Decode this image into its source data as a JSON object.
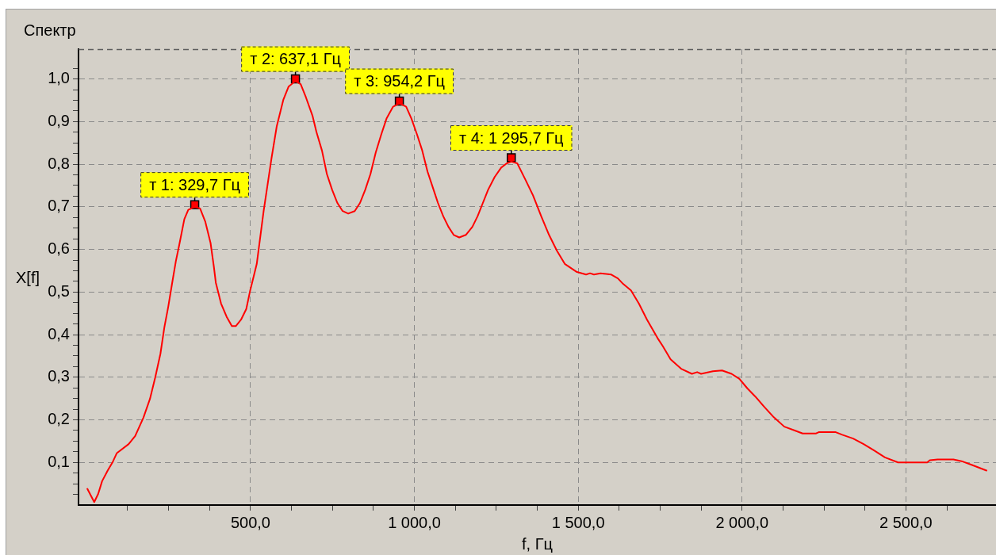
{
  "chart_data": {
    "type": "line",
    "title": "Спектр",
    "xlabel": "f, Гц",
    "ylabel": "X[f]",
    "color": "#ff0000",
    "marker": "none",
    "line_style": "solid",
    "grid": true,
    "xlim": [
      -25,
      2775
    ],
    "ylim": [
      0,
      1.07
    ],
    "xticks": [
      {
        "value": 125,
        "label": null
      },
      {
        "value": 250,
        "label": null
      },
      {
        "value": 375,
        "label": null
      },
      {
        "value": 500,
        "label": "500,0"
      },
      {
        "value": 625,
        "label": null
      },
      {
        "value": 750,
        "label": null
      },
      {
        "value": 875,
        "label": null
      },
      {
        "value": 1000,
        "label": "1 000,0"
      },
      {
        "value": 1125,
        "label": null
      },
      {
        "value": 1250,
        "label": null
      },
      {
        "value": 1375,
        "label": null
      },
      {
        "value": 1500,
        "label": "1 500,0"
      },
      {
        "value": 1625,
        "label": null
      },
      {
        "value": 1750,
        "label": null
      },
      {
        "value": 1875,
        "label": null
      },
      {
        "value": 2000,
        "label": "2 000,0"
      },
      {
        "value": 2125,
        "label": null
      },
      {
        "value": 2250,
        "label": null
      },
      {
        "value": 2375,
        "label": null
      },
      {
        "value": 2500,
        "label": "2 500,0"
      },
      {
        "value": 2625,
        "label": null
      }
    ],
    "yticks": [
      {
        "value": 0.025,
        "label": null
      },
      {
        "value": 0.05,
        "label": null
      },
      {
        "value": 0.075,
        "label": null
      },
      {
        "value": 0.1,
        "label": "0,1"
      },
      {
        "value": 0.125,
        "label": null
      },
      {
        "value": 0.15,
        "label": null
      },
      {
        "value": 0.175,
        "label": null
      },
      {
        "value": 0.2,
        "label": "0,2"
      },
      {
        "value": 0.225,
        "label": null
      },
      {
        "value": 0.25,
        "label": null
      },
      {
        "value": 0.275,
        "label": null
      },
      {
        "value": 0.3,
        "label": "0,3"
      },
      {
        "value": 0.325,
        "label": null
      },
      {
        "value": 0.35,
        "label": null
      },
      {
        "value": 0.375,
        "label": null
      },
      {
        "value": 0.4,
        "label": "0,4"
      },
      {
        "value": 0.425,
        "label": null
      },
      {
        "value": 0.45,
        "label": null
      },
      {
        "value": 0.475,
        "label": null
      },
      {
        "value": 0.5,
        "label": "0,5"
      },
      {
        "value": 0.525,
        "label": null
      },
      {
        "value": 0.55,
        "label": null
      },
      {
        "value": 0.575,
        "label": null
      },
      {
        "value": 0.6,
        "label": "0,6"
      },
      {
        "value": 0.625,
        "label": null
      },
      {
        "value": 0.65,
        "label": null
      },
      {
        "value": 0.675,
        "label": null
      },
      {
        "value": 0.7,
        "label": "0,7"
      },
      {
        "value": 0.725,
        "label": null
      },
      {
        "value": 0.75,
        "label": null
      },
      {
        "value": 0.775,
        "label": null
      },
      {
        "value": 0.8,
        "label": "0,8"
      },
      {
        "value": 0.825,
        "label": null
      },
      {
        "value": 0.85,
        "label": null
      },
      {
        "value": 0.875,
        "label": null
      },
      {
        "value": 0.9,
        "label": "0,9"
      },
      {
        "value": 0.925,
        "label": null
      },
      {
        "value": 0.95,
        "label": null
      },
      {
        "value": 0.975,
        "label": null
      },
      {
        "value": 1.0,
        "label": "1,0"
      },
      {
        "value": 1.025,
        "label": null
      }
    ],
    "x": [
      2,
      23,
      35,
      47,
      64,
      80,
      92,
      128,
      148,
      173,
      193,
      209,
      225,
      237,
      249,
      261,
      272,
      282,
      298,
      310,
      330,
      346,
      362,
      378,
      388,
      394,
      410,
      427,
      443,
      455,
      471,
      487,
      499,
      511,
      519,
      540,
      564,
      580,
      600,
      616,
      637,
      653,
      669,
      689,
      701,
      718,
      733,
      749,
      765,
      781,
      798,
      818,
      834,
      850,
      866,
      882,
      899,
      915,
      935,
      954,
      975,
      991,
      1008,
      1024,
      1040,
      1056,
      1072,
      1088,
      1104,
      1120,
      1137,
      1157,
      1177,
      1193,
      1209,
      1225,
      1245,
      1265,
      1282,
      1296,
      1314,
      1338,
      1362,
      1387,
      1411,
      1435,
      1459,
      1496,
      1524,
      1536,
      1548,
      1568,
      1601,
      1621,
      1637,
      1661,
      1685,
      1710,
      1742,
      1758,
      1782,
      1814,
      1847,
      1863,
      1875,
      1911,
      1939,
      1968,
      1992,
      2016,
      2040,
      2065,
      2097,
      2129,
      2161,
      2185,
      2226,
      2234,
      2286,
      2306,
      2339,
      2371,
      2403,
      2436,
      2476,
      2565,
      2573,
      2597,
      2645,
      2670,
      2702,
      2746
    ],
    "values": [
      0.038,
      0.007,
      0.026,
      0.056,
      0.081,
      0.102,
      0.122,
      0.143,
      0.162,
      0.205,
      0.249,
      0.299,
      0.355,
      0.417,
      0.466,
      0.522,
      0.572,
      0.609,
      0.671,
      0.693,
      0.7,
      0.696,
      0.665,
      0.615,
      0.56,
      0.522,
      0.473,
      0.442,
      0.42,
      0.42,
      0.435,
      0.46,
      0.504,
      0.541,
      0.566,
      0.69,
      0.814,
      0.889,
      0.951,
      0.982,
      0.995,
      0.988,
      0.957,
      0.914,
      0.876,
      0.832,
      0.777,
      0.74,
      0.709,
      0.69,
      0.684,
      0.69,
      0.709,
      0.74,
      0.777,
      0.827,
      0.87,
      0.907,
      0.935,
      0.943,
      0.935,
      0.907,
      0.87,
      0.832,
      0.783,
      0.746,
      0.709,
      0.678,
      0.653,
      0.634,
      0.628,
      0.634,
      0.653,
      0.678,
      0.709,
      0.74,
      0.77,
      0.792,
      0.802,
      0.806,
      0.802,
      0.765,
      0.727,
      0.678,
      0.634,
      0.597,
      0.566,
      0.547,
      0.541,
      0.544,
      0.541,
      0.544,
      0.541,
      0.532,
      0.519,
      0.504,
      0.473,
      0.435,
      0.392,
      0.373,
      0.342,
      0.32,
      0.308,
      0.312,
      0.308,
      0.314,
      0.316,
      0.308,
      0.296,
      0.274,
      0.255,
      0.233,
      0.206,
      0.184,
      0.175,
      0.168,
      0.168,
      0.171,
      0.171,
      0.165,
      0.156,
      0.143,
      0.128,
      0.112,
      0.1,
      0.1,
      0.105,
      0.107,
      0.107,
      0.103,
      0.094,
      0.081
    ],
    "annotations": [
      {
        "text": "т 1: 329,7 Гц",
        "x": 329.7,
        "y": 0.705
      },
      {
        "text": "т 2: 637,1 Гц",
        "x": 637.1,
        "y": 1.0
      },
      {
        "text": "т 3: 954,2 Гц",
        "x": 954.2,
        "y": 0.948
      },
      {
        "text": "т 4: 1 295,7 Гц",
        "x": 1295.7,
        "y": 0.815
      }
    ]
  }
}
